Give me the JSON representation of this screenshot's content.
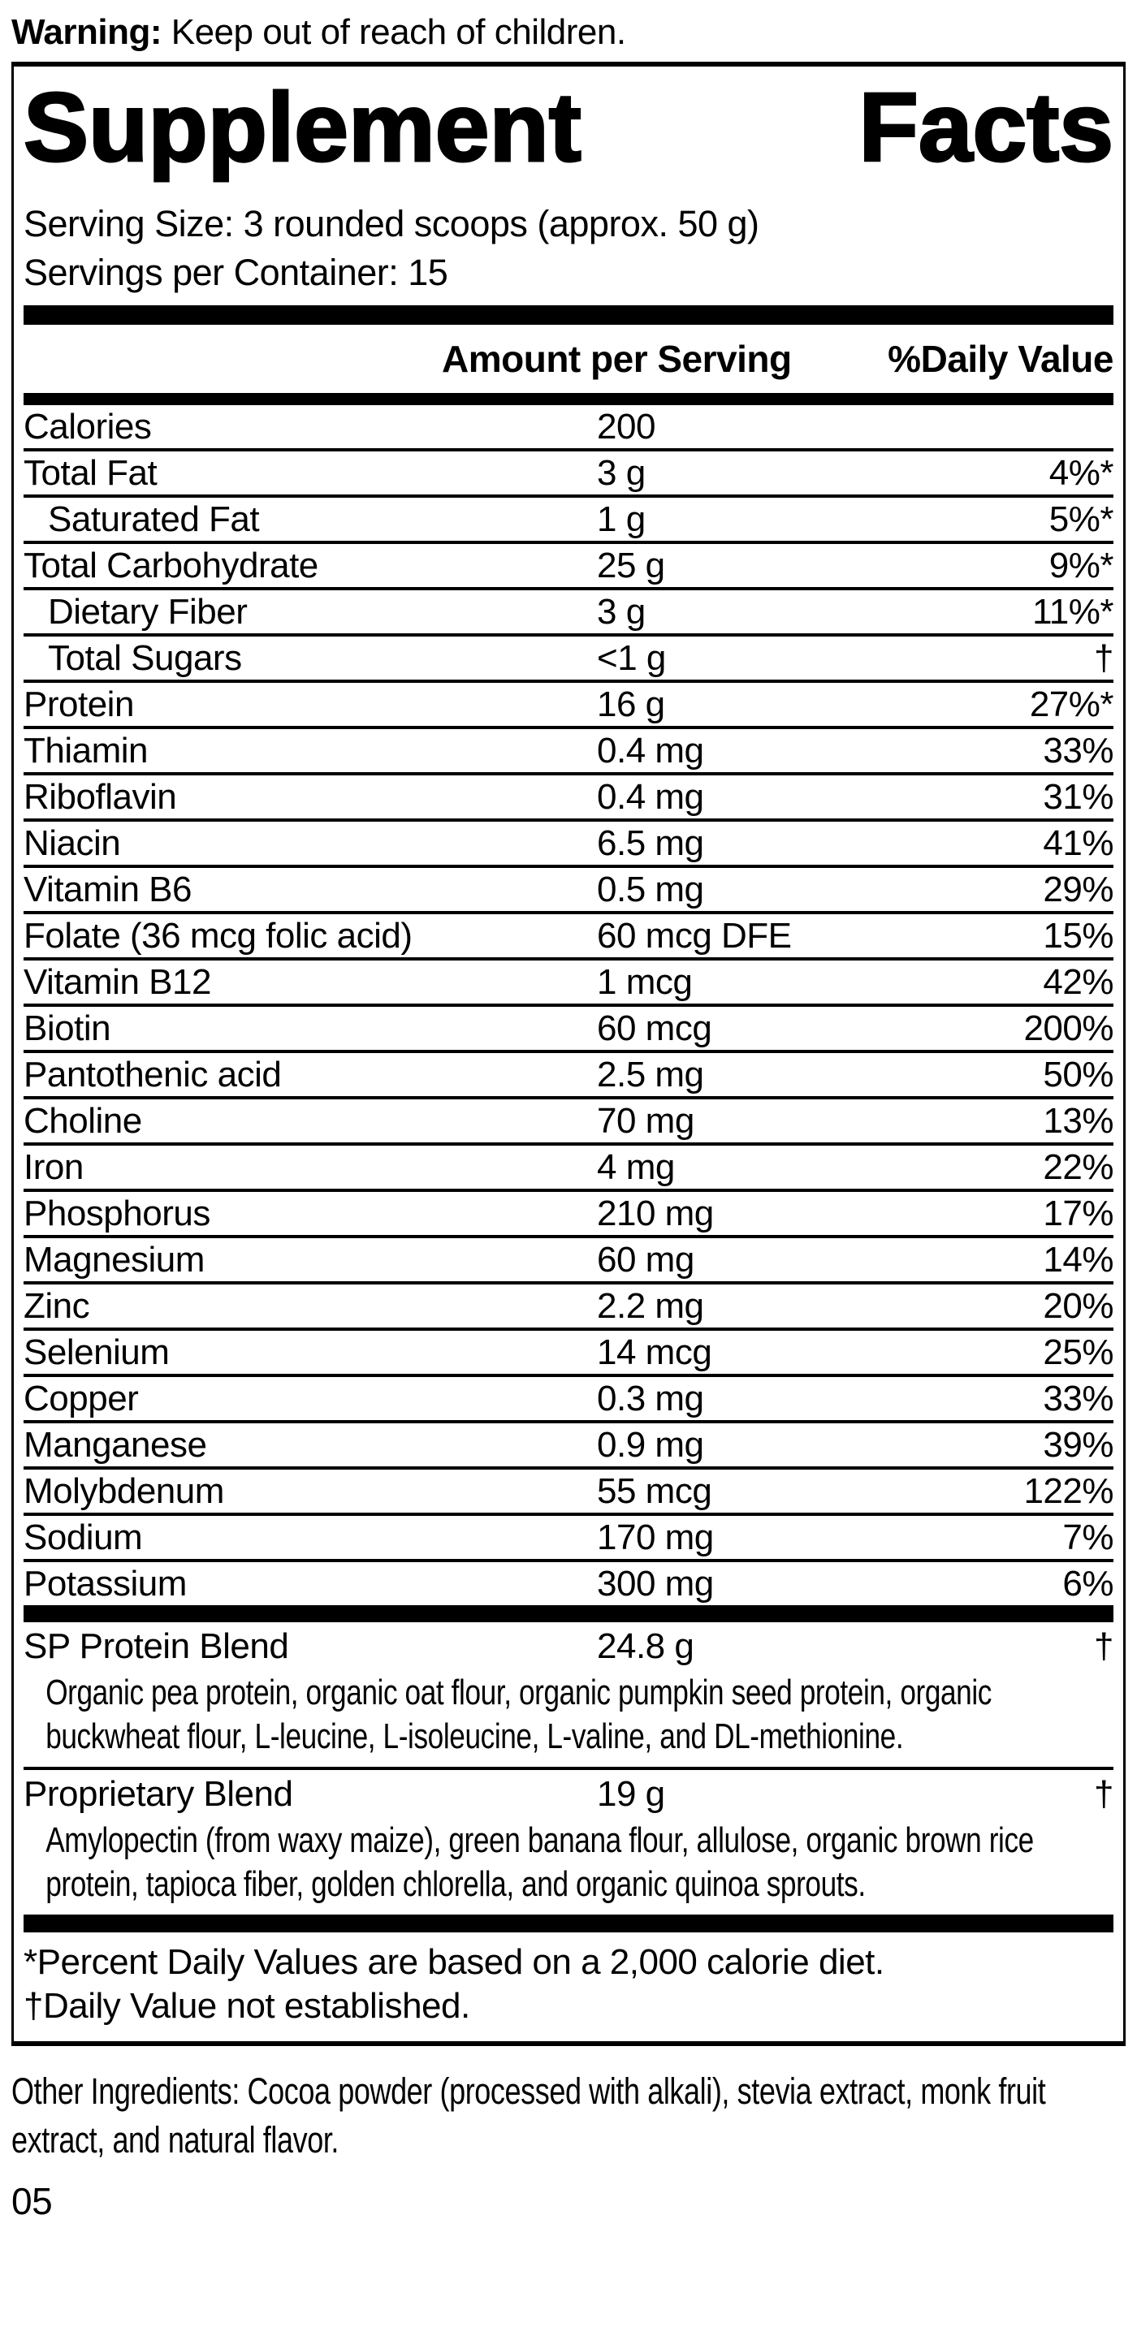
{
  "warning": {
    "label": "Warning:",
    "text": " Keep out of reach of children."
  },
  "panel": {
    "title_words": [
      "Supplement",
      "Facts"
    ],
    "serving_size": "Serving Size: 3 rounded scoops (approx. 50 g)",
    "servings_per_container": "Servings per Container: 15",
    "columns": {
      "amount": "Amount per Serving",
      "daily_value": "%Daily Value"
    },
    "rows": [
      {
        "label": "Calories",
        "amount": "200",
        "dv": "",
        "indent": false
      },
      {
        "label": "Total Fat",
        "amount": "3 g",
        "dv": "4%*",
        "indent": false
      },
      {
        "label": "Saturated Fat",
        "amount": "1 g",
        "dv": "5%*",
        "indent": true
      },
      {
        "label": "Total Carbohydrate",
        "amount": "25 g",
        "dv": "9%*",
        "indent": false
      },
      {
        "label": "Dietary Fiber",
        "amount": "3 g",
        "dv": "11%*",
        "indent": true
      },
      {
        "label": "Total Sugars",
        "amount": "<1 g",
        "dv": "†",
        "indent": true
      },
      {
        "label": "Protein",
        "amount": "16 g",
        "dv": "27%*",
        "indent": false
      },
      {
        "label": "Thiamin",
        "amount": "0.4 mg",
        "dv": "33%",
        "indent": false
      },
      {
        "label": "Riboflavin",
        "amount": "0.4 mg",
        "dv": "31%",
        "indent": false
      },
      {
        "label": "Niacin",
        "amount": "6.5 mg",
        "dv": "41%",
        "indent": false
      },
      {
        "label": "Vitamin B6",
        "amount": "0.5 mg",
        "dv": "29%",
        "indent": false
      },
      {
        "label": "Folate (36 mcg folic acid)",
        "amount": "60 mcg DFE",
        "dv": "15%",
        "indent": false
      },
      {
        "label": "Vitamin B12",
        "amount": "1 mcg",
        "dv": "42%",
        "indent": false
      },
      {
        "label": "Biotin",
        "amount": "60 mcg",
        "dv": "200%",
        "indent": false
      },
      {
        "label": "Pantothenic acid",
        "amount": "2.5 mg",
        "dv": "50%",
        "indent": false
      },
      {
        "label": "Choline",
        "amount": "70 mg",
        "dv": "13%",
        "indent": false
      },
      {
        "label": "Iron",
        "amount": "4 mg",
        "dv": "22%",
        "indent": false
      },
      {
        "label": "Phosphorus",
        "amount": "210 mg",
        "dv": "17%",
        "indent": false
      },
      {
        "label": "Magnesium",
        "amount": "60 mg",
        "dv": "14%",
        "indent": false
      },
      {
        "label": "Zinc",
        "amount": "2.2 mg",
        "dv": "20%",
        "indent": false
      },
      {
        "label": "Selenium",
        "amount": "14 mcg",
        "dv": "25%",
        "indent": false
      },
      {
        "label": "Copper",
        "amount": "0.3 mg",
        "dv": "33%",
        "indent": false
      },
      {
        "label": "Manganese",
        "amount": "0.9 mg",
        "dv": "39%",
        "indent": false
      },
      {
        "label": "Molybdenum",
        "amount": "55 mcg",
        "dv": "122%",
        "indent": false
      },
      {
        "label": "Sodium",
        "amount": "170 mg",
        "dv": "7%",
        "indent": false
      },
      {
        "label": "Potassium",
        "amount": "300 mg",
        "dv": "6%",
        "indent": false
      }
    ],
    "blends": [
      {
        "label": "SP Protein Blend",
        "amount": "24.8 g",
        "dv": "†",
        "description": "Organic pea protein, organic oat flour, organic pumpkin seed protein, organic buckwheat flour, L-leucine, L-isoleucine, L-valine, and DL-methionine."
      },
      {
        "label": "Proprietary Blend",
        "amount": "19 g",
        "dv": "†",
        "description": "Amylopectin (from waxy maize), green banana flour, allulose, organic brown rice protein, tapioca fiber, golden chlorella, and organic quinoa sprouts."
      }
    ],
    "footnotes": [
      "*Percent Daily Values are based on a 2,000 calorie diet.",
      "†Daily Value not established."
    ]
  },
  "other_ingredients": "Other Ingredients: Cocoa powder (processed with alkali), stevia extract, monk fruit extract, and natural flavor.",
  "footer_code": "05",
  "colors": {
    "ink": "#000000",
    "background": "#ffffff"
  }
}
